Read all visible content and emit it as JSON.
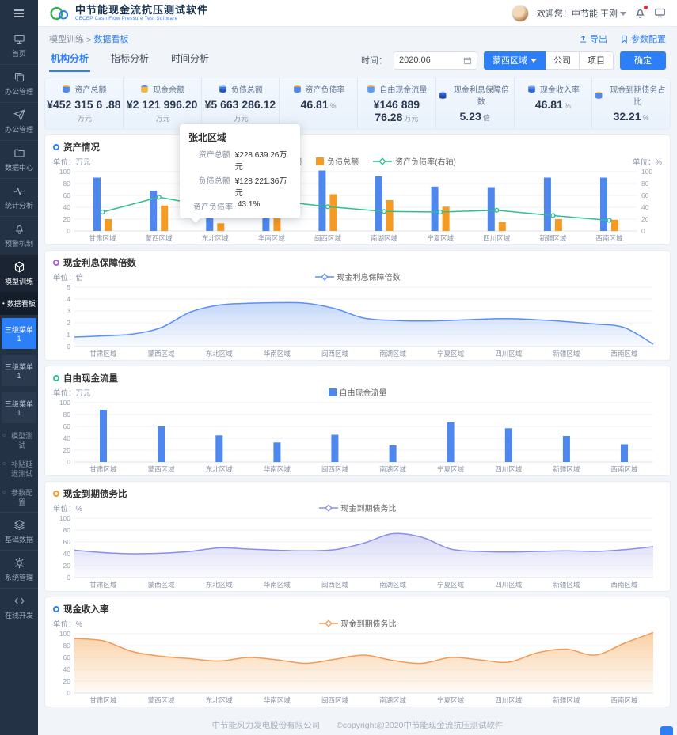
{
  "colors": {
    "accent": "#2d7ff7",
    "bar_blue": "#4e87ee",
    "bar_orange": "#f59a23",
    "line_green": "#2fbf8f"
  },
  "brand": {
    "title": "中节能现金流抗压测试软件",
    "subtitle": "CECEP Cash Flow Pressure Test Software"
  },
  "header": {
    "welcome": "欢迎您！中节能 王刚"
  },
  "breadcrumb": {
    "parent": "模型训练",
    "separator": ">",
    "current": "数据看板"
  },
  "actions": {
    "export": "导出",
    "config": "参数配置"
  },
  "tabs": [
    {
      "label": "机构分析",
      "active": true
    },
    {
      "label": "指标分析",
      "active": false
    },
    {
      "label": "时间分析",
      "active": false
    }
  ],
  "filters": {
    "time_label": "时间：",
    "date": "2020.06",
    "region": "蒙西区域",
    "company": "公司",
    "project": "项目",
    "confirm": "确定"
  },
  "kpis": [
    {
      "label": "资产总额",
      "value": "¥452 315 6 .88",
      "unit": "万元",
      "icon": "assets-icon",
      "c1": "#4e87ee",
      "c2": "#f5b73c"
    },
    {
      "label": "现金余额",
      "value": "¥2 121 996.20",
      "unit": "万元",
      "icon": "cash-icon",
      "c1": "#f5b73c",
      "c2": "#4e87ee"
    },
    {
      "label": "负债总额",
      "value": "¥5 663 286.12",
      "unit": "万元",
      "icon": "debt-icon",
      "c1": "#3f74e0",
      "c2": "#7fd0f2",
      "c3": "#2857b8"
    },
    {
      "label": "资产负债率",
      "value": "46.81",
      "unit": "%",
      "icon": "ratio-icon",
      "c1": "#4e87ee",
      "c2": "#f5b73c"
    },
    {
      "label": "自由现金流量",
      "value": "¥146 889 76.28",
      "unit": "万元",
      "icon": "free-cash-icon",
      "c1": "#5b9bf5",
      "c2": "#f5b73c"
    },
    {
      "label": "现金利息保障倍数",
      "value": "5.23",
      "unit": "倍",
      "icon": "coverage-icon",
      "c1": "#2f5fd0",
      "c2": "#6fa4f7",
      "c3": "#1d47a8"
    },
    {
      "label": "现金收入率",
      "value": "46.81",
      "unit": "%",
      "icon": "income-icon",
      "c1": "#4e87ee",
      "c2": "#9cc3fa",
      "c3": "#2d6ae0"
    },
    {
      "label": "现金到期债务占比",
      "value": "32.21",
      "unit": "%",
      "icon": "due-debt-icon",
      "c1": "#4e87ee",
      "c2": "#f5b73c"
    }
  ],
  "chart_data": [
    {
      "id": "c1",
      "type": "bar",
      "title": "资产情况",
      "title_color": "#2d7ff7",
      "unit_left": "单位：万元",
      "unit_right": "单位：%",
      "ylim": [
        0,
        100
      ],
      "yticks": [
        0,
        20,
        40,
        60,
        80,
        100
      ],
      "right_yticks": [
        0,
        20,
        40,
        60,
        80,
        100
      ],
      "categories": [
        "甘肃区域",
        "蒙西区域",
        "东北区域",
        "华南区域",
        "闽西区域",
        "南湖区域",
        "宁夏区域",
        "四川区域",
        "新疆区域",
        "西南区域"
      ],
      "series": [
        {
          "name": "资产总额",
          "type": "bar",
          "color": "#4e87ee",
          "values": [
            90,
            68,
            54,
            65,
            102,
            92,
            75,
            74,
            90,
            90
          ]
        },
        {
          "name": "负债总额",
          "type": "bar",
          "color": "#f59a23",
          "values": [
            20,
            43,
            13,
            42,
            62,
            52,
            41,
            15,
            20,
            19
          ]
        },
        {
          "name": "资产负债率(右轴)",
          "type": "line",
          "color": "#2fbf8f",
          "axis": "right",
          "values": [
            32,
            57,
            40,
            52,
            41,
            33,
            32,
            35,
            26,
            18
          ]
        }
      ],
      "tooltip": {
        "title": "张北区域",
        "rows": [
          [
            "资产总额",
            "¥228 639.26万元"
          ],
          [
            "负债总额",
            "¥128 221.36万元"
          ],
          [
            "资产负债率",
            "43.1%"
          ]
        ]
      }
    },
    {
      "id": "c2",
      "type": "area",
      "title": "现金利息保障倍数",
      "title_color": "#b05ce0",
      "unit_left": "单位：倍",
      "ylim": [
        0,
        5
      ],
      "yticks": [
        0,
        1,
        2,
        3,
        4,
        5
      ],
      "categories": [
        "甘肃区域",
        "蒙西区域",
        "东北区域",
        "华南区域",
        "闽西区域",
        "南湖区域",
        "宁夏区域",
        "四川区域",
        "新疆区域",
        "西南区域"
      ],
      "series": [
        {
          "name": "现金利息保障倍数",
          "type": "area",
          "color": "#5b8ff9",
          "fill": "#b9d0f9",
          "values": [
            0.8,
            0.9,
            1.05,
            1.6,
            2.9,
            3.5,
            3.65,
            3.7,
            3.65,
            3.2,
            2.4,
            2.2,
            2.15,
            2.2,
            2.3,
            2.35,
            2.25,
            2.1,
            1.9,
            1.6,
            0.2
          ]
        }
      ]
    },
    {
      "id": "c3",
      "type": "bar",
      "title": "自由现金流量",
      "title_color": "#2fbf8f",
      "unit_left": "单位：万元",
      "ylim": [
        0,
        100
      ],
      "yticks": [
        0,
        20,
        40,
        60,
        80,
        100
      ],
      "categories": [
        "甘肃区域",
        "蒙西区域",
        "东北区域",
        "华南区域",
        "闽西区域",
        "南湖区域",
        "宁夏区域",
        "四川区域",
        "新疆区域",
        "西南区域"
      ],
      "series": [
        {
          "name": "自由现金流量",
          "type": "bar",
          "color": "#4e87ee",
          "values": [
            88,
            60,
            45,
            33,
            46,
            28,
            67,
            57,
            44,
            30
          ]
        }
      ]
    },
    {
      "id": "c4",
      "type": "area",
      "title": "现金到期债务比",
      "title_color": "#f59a23",
      "unit_left": "单位：%",
      "ylim": [
        0,
        100
      ],
      "yticks": [
        0,
        20,
        40,
        60,
        80,
        100
      ],
      "categories": [
        "甘肃区域",
        "蒙西区域",
        "东北区域",
        "华南区域",
        "闽西区域",
        "南湖区域",
        "宁夏区域",
        "四川区域",
        "新疆区域",
        "西南区域"
      ],
      "series": [
        {
          "name": "现金到期债务比",
          "type": "area",
          "color": "#8b8fe8",
          "fill": "#cfd1f5",
          "values": [
            46,
            42,
            40,
            41,
            44,
            50,
            48,
            46,
            45,
            47,
            58,
            74,
            68,
            48,
            44,
            43,
            44,
            45,
            44,
            47,
            52
          ]
        }
      ]
    },
    {
      "id": "c5",
      "type": "area",
      "title": "现金收入率",
      "title_color": "#2d7ff7",
      "unit_left": "单位：%",
      "ylim": [
        0,
        100
      ],
      "yticks": [
        0,
        20,
        40,
        60,
        80,
        100
      ],
      "categories": [
        "甘肃区域",
        "蒙西区域",
        "东北区域",
        "华南区域",
        "闽西区域",
        "南湖区域",
        "宁夏区域",
        "四川区域",
        "新疆区域",
        "西南区域"
      ],
      "series": [
        {
          "name": "现金到期债务比",
          "type": "area",
          "color": "#f59a55",
          "fill": "#f9c996",
          "values": [
            92,
            88,
            70,
            62,
            58,
            54,
            60,
            56,
            50,
            57,
            64,
            55,
            50,
            60,
            56,
            52,
            68,
            74,
            64,
            84,
            102
          ]
        }
      ]
    }
  ],
  "sidebar": {
    "items": [
      {
        "type": "menu",
        "icon": "home-icon",
        "label": "首页"
      },
      {
        "type": "menu",
        "icon": "office-copy-icon",
        "label": "办公管理"
      },
      {
        "type": "menu",
        "icon": "send-icon",
        "label": "办公管理"
      },
      {
        "type": "menu",
        "icon": "folder-icon",
        "label": "数据中心"
      },
      {
        "type": "menu",
        "icon": "stats-icon",
        "label": "统计分析"
      },
      {
        "type": "menu",
        "icon": "alert-icon",
        "label": "预警机制"
      },
      {
        "type": "menu",
        "icon": "model-cube-icon",
        "label": "模型训练",
        "active": true
      },
      {
        "type": "sub",
        "label": "数据看板",
        "active": true
      },
      {
        "type": "subbtn",
        "label": "三级菜单1",
        "active": true
      },
      {
        "type": "subbtn",
        "label": "三级菜单1"
      },
      {
        "type": "subbtn",
        "label": "三级菜单1"
      },
      {
        "type": "sub2",
        "label": "模型测试"
      },
      {
        "type": "sub2",
        "label": "补贴延迟测试"
      },
      {
        "type": "sub2",
        "label": "参数配置"
      },
      {
        "type": "menu",
        "icon": "layers-icon",
        "label": "基础数据"
      },
      {
        "type": "menu",
        "icon": "gear-icon",
        "label": "系统管理"
      },
      {
        "type": "menu",
        "icon": "code-icon",
        "label": "在线开发"
      }
    ]
  },
  "footer": {
    "company": "中节能风力发电股份有限公司",
    "copyright": "©copyright@2020中节能现金流抗压测试软件"
  }
}
